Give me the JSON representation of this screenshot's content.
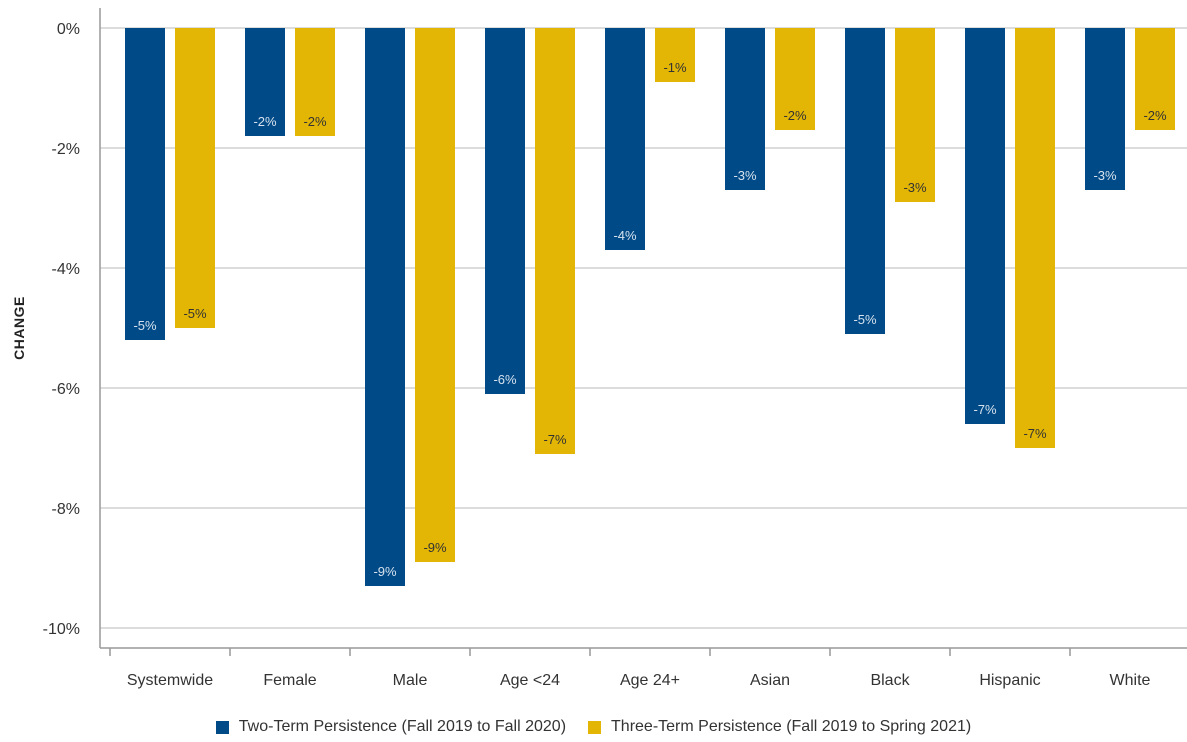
{
  "chart_data": {
    "type": "bar",
    "title": "",
    "xlabel": "",
    "ylabel": "CHANGE",
    "ylim": [
      -10,
      0
    ],
    "yticks": [
      0,
      -2,
      -4,
      -6,
      -8,
      -10
    ],
    "ytick_labels": [
      "0%",
      "-2%",
      "-4%",
      "-6%",
      "-8%",
      "-10%"
    ],
    "grid": true,
    "legend_position": "bottom",
    "categories": [
      "Systemwide",
      "Female",
      "Male",
      "Age <24",
      "Age 24+",
      "Asian",
      "Black",
      "Hispanic",
      "White"
    ],
    "series": [
      {
        "name": "Two-Term Persistence (Fall 2019 to Fall 2020)",
        "color": "#004a87",
        "label_color": "#d7e2ee",
        "values": [
          -5.2,
          -1.8,
          -9.3,
          -6.1,
          -3.7,
          -2.7,
          -5.1,
          -6.6,
          -2.7
        ],
        "labels": [
          "-5%",
          "-2%",
          "-9%",
          "-6%",
          "-4%",
          "-3%",
          "-5%",
          "-7%",
          "-3%"
        ]
      },
      {
        "name": "Three-Term Persistence (Fall 2019 to Spring 2021)",
        "color": "#e3b505",
        "label_color": "#333333",
        "values": [
          -5.0,
          -1.8,
          -8.9,
          -7.1,
          -0.9,
          -1.7,
          -2.9,
          -7.0,
          -1.7
        ],
        "labels": [
          "-5%",
          "-2%",
          "-9%",
          "-7%",
          "-1%",
          "-2%",
          "-3%",
          "-7%",
          "-2%"
        ]
      }
    ]
  }
}
